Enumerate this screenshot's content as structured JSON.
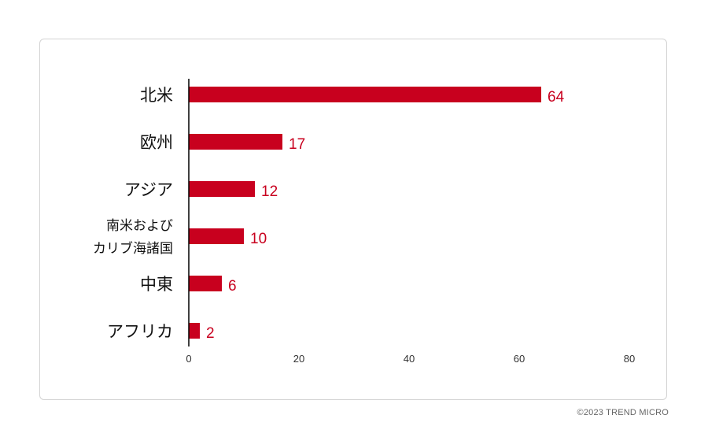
{
  "chart_data": {
    "type": "bar",
    "orientation": "horizontal",
    "categories": [
      [
        "北米"
      ],
      [
        "欧州"
      ],
      [
        "アジア"
      ],
      [
        "南米および",
        "カリブ海諸国"
      ],
      [
        "中東"
      ],
      [
        "アフリカ"
      ]
    ],
    "values": [
      64,
      17,
      12,
      10,
      6,
      2
    ],
    "xlim": [
      0,
      80
    ],
    "xticks": [
      0,
      20,
      40,
      60,
      80
    ],
    "grid": false,
    "data_labels": true,
    "title": "",
    "xlabel": "",
    "ylabel": "",
    "bar_color": "#c8001e",
    "label_color": "#c8001e"
  },
  "footer": {
    "copyright": "©2023 TREND MICRO"
  }
}
